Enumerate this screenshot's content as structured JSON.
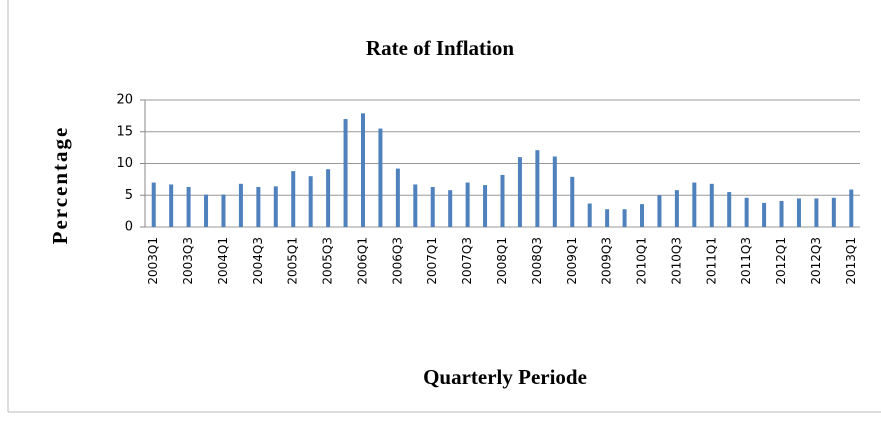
{
  "chart_data": {
    "type": "bar",
    "title": "Rate of Inflation",
    "x_label": "Quarterly Periode",
    "y_label": "Percentage",
    "categories": [
      "2003Q1",
      null,
      "2003Q3",
      null,
      "2004Q1",
      null,
      "2004Q3",
      null,
      "2005Q1",
      null,
      "2005Q3",
      null,
      "2006Q1",
      null,
      "2006Q3",
      null,
      "2007Q1",
      null,
      "2007Q3",
      null,
      "2008Q1",
      null,
      "2008Q3",
      null,
      "2009Q1",
      null,
      "2009Q3",
      null,
      "2010Q1",
      null,
      "2010Q3",
      null,
      "2011Q1",
      null,
      "2011Q3",
      null,
      "2012Q1",
      null,
      "2012Q3",
      null,
      "2013Q1"
    ],
    "values": [
      7,
      6.7,
      6.3,
      5.1,
      5.1,
      6.8,
      6.3,
      6.4,
      8.8,
      8,
      9.1,
      17,
      17.9,
      15.5,
      9.2,
      6.7,
      6.3,
      5.8,
      7,
      6.6,
      8.2,
      11,
      12.1,
      11.1,
      7.9,
      3.7,
      2.8,
      2.8,
      3.6,
      5,
      5.8,
      7,
      6.8,
      5.5,
      4.6,
      3.8,
      4.1,
      4.5,
      4.5,
      4.6,
      5.9
    ],
    "color": "#4f81bd",
    "ylim": [
      0,
      20
    ],
    "yticks": [
      0,
      5,
      10,
      15,
      20
    ],
    "grid": true
  }
}
